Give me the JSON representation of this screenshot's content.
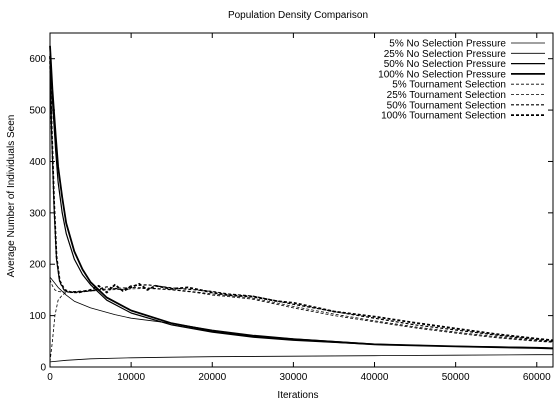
{
  "chart_data": {
    "type": "line",
    "title": "Population Density Comparison",
    "xlabel": "Iterations",
    "ylabel": "Average Number of Individuals Seen",
    "xlim": [
      0,
      62000
    ],
    "ylim": [
      0,
      650
    ],
    "xticks": [
      0,
      10000,
      20000,
      30000,
      40000,
      50000,
      60000
    ],
    "yticks": [
      0,
      100,
      200,
      300,
      400,
      500,
      600
    ],
    "grid": false,
    "legend_position": "top-right",
    "series": [
      {
        "name": "5% No Selection Pressure",
        "style": "solid",
        "weight": "thin",
        "x": [
          0,
          2000,
          5000,
          10000,
          15000,
          20000,
          30000,
          40000,
          50000,
          60000,
          62000
        ],
        "y": [
          10,
          13,
          16,
          18,
          19,
          20,
          21,
          22,
          23,
          24,
          24
        ]
      },
      {
        "name": "25% No Selection Pressure",
        "style": "solid",
        "weight": "thin",
        "x": [
          0,
          500,
          1000,
          2000,
          3000,
          5000,
          8000,
          10000,
          15000,
          20000,
          25000,
          30000,
          40000,
          50000,
          60000,
          62000
        ],
        "y": [
          175,
          165,
          155,
          140,
          128,
          115,
          102,
          95,
          85,
          72,
          62,
          55,
          45,
          40,
          38,
          37
        ]
      },
      {
        "name": "50% No Selection Pressure",
        "style": "solid",
        "weight": "medium",
        "x": [
          0,
          300,
          700,
          1000,
          1500,
          2000,
          3000,
          4000,
          5000,
          7000,
          10000,
          15000,
          20000,
          25000,
          30000,
          40000,
          50000,
          60000,
          62000
        ],
        "y": [
          610,
          520,
          420,
          360,
          300,
          260,
          210,
          180,
          160,
          130,
          105,
          82,
          68,
          58,
          52,
          44,
          40,
          38,
          37
        ]
      },
      {
        "name": "100% No Selection Pressure",
        "style": "solid",
        "weight": "thick",
        "x": [
          0,
          300,
          700,
          1000,
          1500,
          2000,
          3000,
          4000,
          5000,
          7000,
          10000,
          15000,
          20000,
          25000,
          30000,
          40000,
          50000,
          60000,
          62000
        ],
        "y": [
          625,
          540,
          450,
          390,
          330,
          280,
          225,
          190,
          165,
          135,
          110,
          85,
          70,
          60,
          54,
          44,
          40,
          37,
          36
        ]
      },
      {
        "name": "5% Tournament Selection",
        "style": "dashed",
        "weight": "thin",
        "x": [
          0,
          300,
          600,
          1000,
          1500,
          2000,
          3000,
          5000,
          7000,
          10000,
          12000,
          15000,
          18000,
          20000,
          22000,
          25000,
          30000,
          35000,
          40000,
          45000,
          50000,
          55000,
          60000,
          62000
        ],
        "y": [
          10,
          50,
          100,
          130,
          140,
          145,
          147,
          148,
          150,
          152,
          153,
          150,
          145,
          140,
          137,
          132,
          115,
          100,
          88,
          76,
          66,
          57,
          50,
          48
        ]
      },
      {
        "name": "25% Tournament Selection",
        "style": "dashed",
        "weight": "thin",
        "x": [
          0,
          300,
          600,
          1000,
          1500,
          2000,
          3000,
          5000,
          7000,
          10000,
          12000,
          15000,
          18000,
          20000,
          22000,
          25000,
          30000,
          35000,
          40000,
          45000,
          50000,
          55000,
          60000,
          62000
        ],
        "y": [
          170,
          158,
          150,
          147,
          146,
          146,
          147,
          149,
          152,
          155,
          154,
          151,
          146,
          142,
          139,
          134,
          118,
          103,
          90,
          78,
          68,
          59,
          51,
          49
        ]
      },
      {
        "name": "50% Tournament Selection",
        "style": "dashed",
        "weight": "medium",
        "x": [
          0,
          200,
          500,
          800,
          1200,
          1800,
          2500,
          3500,
          5000,
          7000,
          9000,
          10000,
          12000,
          15000,
          18000,
          20000,
          22000,
          25000,
          30000,
          35000,
          40000,
          45000,
          50000,
          55000,
          60000,
          62000
        ],
        "y": [
          600,
          460,
          310,
          210,
          165,
          148,
          145,
          146,
          148,
          156,
          150,
          158,
          160,
          154,
          150,
          147,
          142,
          138,
          122,
          108,
          95,
          82,
          72,
          62,
          53,
          50
        ]
      },
      {
        "name": "100% Tournament Selection",
        "style": "dashed",
        "weight": "thick",
        "x": [
          0,
          200,
          500,
          800,
          1200,
          1800,
          2500,
          3500,
          5000,
          6000,
          7000,
          8000,
          9000,
          10000,
          11000,
          12000,
          13000,
          15000,
          17000,
          20000,
          22000,
          25000,
          28000,
          30000,
          33000,
          35000,
          40000,
          45000,
          50000,
          55000,
          60000,
          62000
        ],
        "y": [
          605,
          470,
          320,
          215,
          168,
          150,
          146,
          145,
          150,
          158,
          145,
          160,
          148,
          155,
          162,
          150,
          158,
          152,
          155,
          145,
          140,
          137,
          128,
          125,
          115,
          108,
          98,
          86,
          75,
          64,
          55,
          52
        ]
      }
    ]
  }
}
